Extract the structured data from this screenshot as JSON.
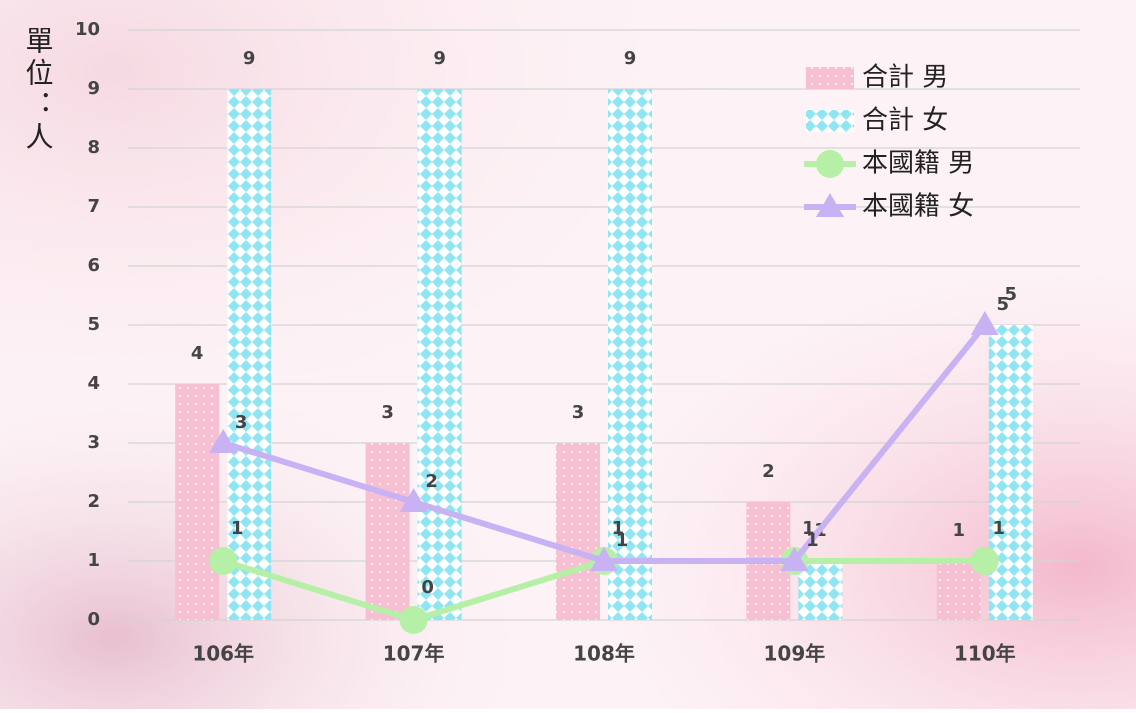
{
  "chart_data": {
    "type": "bar",
    "y_label": "單位：人",
    "categories": [
      "106年",
      "107年",
      "108年",
      "109年",
      "110年"
    ],
    "series": [
      {
        "name": "合計 男",
        "type": "bar",
        "color": "#f7bfd2",
        "values": [
          4,
          3,
          3,
          2,
          1
        ]
      },
      {
        "name": "合計 女",
        "type": "bar",
        "color": "#8fe6f2",
        "values": [
          9,
          9,
          9,
          1,
          5
        ]
      },
      {
        "name": "本國籍 男",
        "type": "line",
        "color": "#b5f0a6",
        "values": [
          1,
          0,
          1,
          1,
          1
        ]
      },
      {
        "name": "本國籍 女",
        "type": "line",
        "color": "#c9b2f4",
        "values": [
          3,
          2,
          1,
          1,
          5
        ]
      }
    ],
    "ylim": [
      0,
      10
    ],
    "yticks": [
      0,
      1,
      2,
      3,
      4,
      5,
      6,
      7,
      8,
      9,
      10
    ],
    "grid": true
  }
}
